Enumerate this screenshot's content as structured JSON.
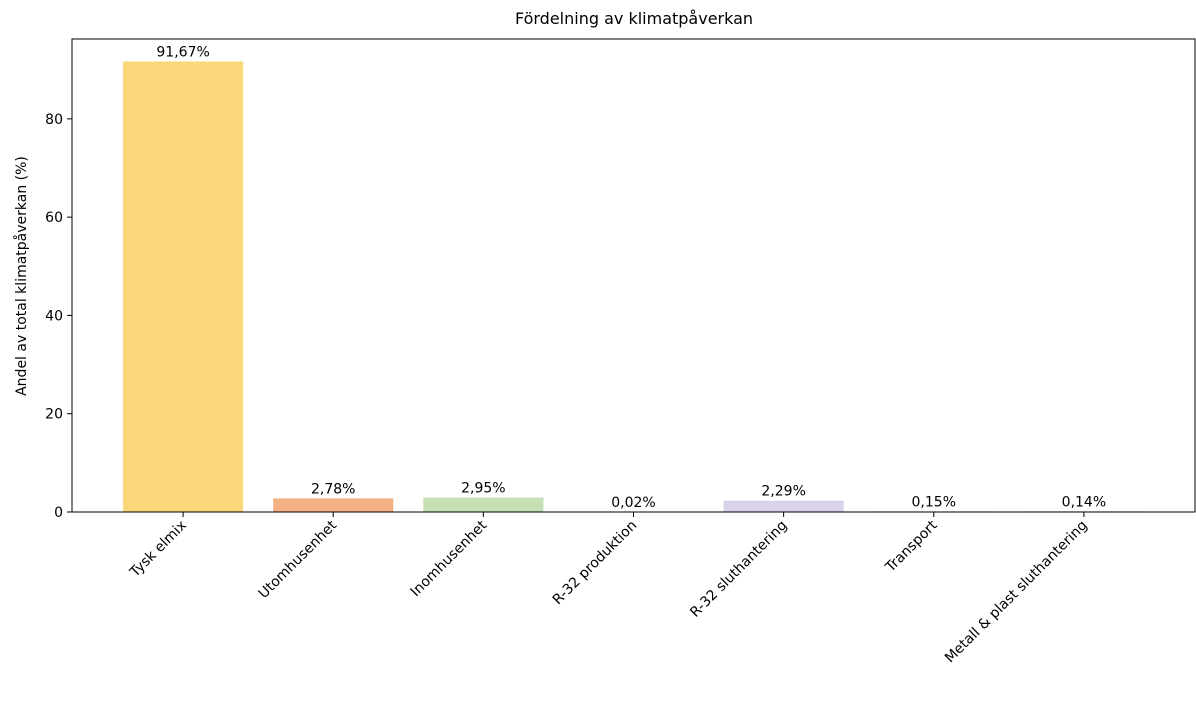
{
  "chart_data": {
    "type": "bar",
    "title": "Fördelning av klimatpåverkan",
    "ylabel": "Andel av total klimatpåverkan (%)",
    "categories": [
      "Tysk elmix",
      "Utomhusenhet",
      "Inomhusenhet",
      "R-32 produktion",
      "R-32 sluthantering",
      "Transport",
      "Metall & plast sluthantering"
    ],
    "values": [
      91.67,
      2.78,
      2.95,
      0.02,
      2.29,
      0.15,
      0.14
    ],
    "value_labels": [
      "91,67%",
      "2,78%",
      "2,95%",
      "0,02%",
      "2,29%",
      "0,15%",
      "0,14%"
    ],
    "colors": [
      "#f9d77a",
      "#f4b183",
      "#c5e0b4",
      "#bdd7ee",
      "#d9d2e9",
      "#fff2cc",
      "#f8cbad"
    ],
    "ylim": [
      0,
      96.25
    ],
    "yticks": [
      0,
      20,
      40,
      60,
      80
    ]
  }
}
